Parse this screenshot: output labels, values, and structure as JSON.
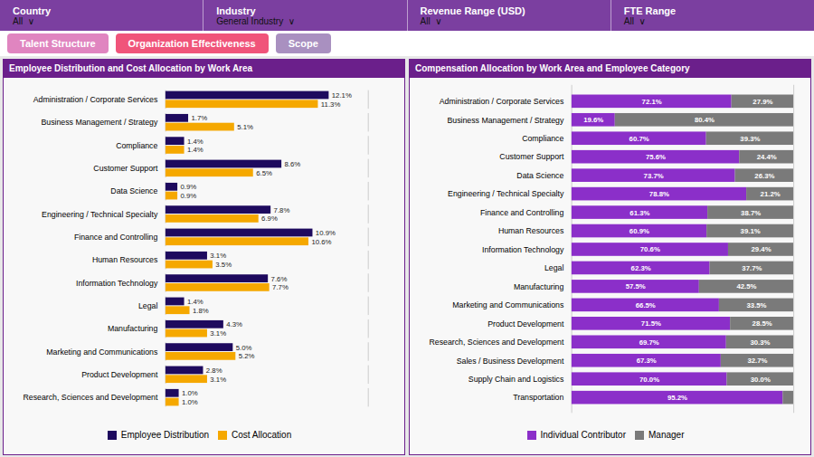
{
  "chart_data": [
    {
      "type": "bar",
      "orientation": "horizontal",
      "title": "Employee Distribution and Cost Allocation by Work Area",
      "annotations": [
        "Country",
        "All  ∨",
        "Industry",
        "General Industry  ∨",
        "Revenue Range (USD)",
        "All  ∨",
        "FTE Range",
        "All  ∨",
        "Talent Structure",
        "Organization Effectiveness",
        "Scope"
      ],
      "categories": [
        "Administration / Corporate Services",
        "Business Management / Strategy",
        "Compliance",
        "Customer Support",
        "Data Science",
        "Engineering / Technical Specialty",
        "Finance and Controlling",
        "Human Resources",
        "Information Technology",
        "Legal",
        "Manufacturing",
        "Marketing and Communications",
        "Product Development",
        "Research, Sciences and Development"
      ],
      "series": [
        {
          "name": "Employee Distribution",
          "color": "#1E0A5E",
          "values": [
            12.1,
            1.7,
            1.4,
            8.6,
            0.9,
            7.8,
            10.9,
            3.1,
            7.6,
            1.4,
            4.3,
            5.0,
            2.8,
            1.0
          ],
          "value_labels": [
            "12.1%",
            "1.7%",
            "1.4%",
            "8.6%",
            "0.9%",
            "7.8%",
            "10.9%",
            "3.1%",
            "7.6%",
            "1.4%",
            "4.3%",
            "5.0%",
            "2.8%",
            "1.0%"
          ]
        },
        {
          "name": "Cost Allocation",
          "color": "#F5A800",
          "values": [
            11.3,
            5.1,
            1.4,
            6.5,
            0.9,
            6.9,
            10.6,
            3.5,
            7.7,
            1.8,
            3.1,
            5.2,
            3.1,
            1.0
          ],
          "value_labels": [
            "11.3%",
            "5.1%",
            "1.4%",
            "6.5%",
            "0.9%",
            "6.9%",
            "10.6%",
            "3.5%",
            "7.7%",
            "1.8%",
            "3.1%",
            "5.2%",
            "3.1%",
            "1.0%"
          ]
        }
      ],
      "xlim": [
        0,
        15
      ],
      "tick_labels": "y",
      "data_labels": true,
      "legend": "bottom"
    },
    {
      "type": "bar",
      "orientation": "horizontal",
      "stacked": true,
      "title": "Compensation Allocation by Work Area and Employee Category",
      "categories": [
        "Administration / Corporate Services",
        "Business Management / Strategy",
        "Compliance",
        "Customer Support",
        "Data Science",
        "Engineering / Technical Specialty",
        "Finance and Controlling",
        "Human Resources",
        "Information Technology",
        "Legal",
        "Manufacturing",
        "Marketing and Communications",
        "Product Development",
        "Research, Sciences and Development",
        "Sales / Business Development",
        "Supply Chain and Logistics",
        "Transportation"
      ],
      "series": [
        {
          "name": "Individual Contributor",
          "color": "#8B2FC9",
          "values": [
            72.1,
            19.6,
            60.7,
            75.6,
            73.7,
            78.8,
            61.3,
            60.9,
            70.6,
            62.3,
            57.5,
            66.5,
            71.5,
            69.7,
            67.3,
            70.0,
            95.2
          ],
          "value_labels": [
            "72.1%",
            "19.6%",
            "60.7%",
            "75.6%",
            "73.7%",
            "78.8%",
            "61.3%",
            "60.9%",
            "70.6%",
            "62.3%",
            "57.5%",
            "66.5%",
            "71.5%",
            "69.7%",
            "67.3%",
            "70.0%",
            "95.2%"
          ]
        },
        {
          "name": "Manager",
          "color": "#7A7A7A",
          "values": [
            27.9,
            80.4,
            39.3,
            24.4,
            26.3,
            21.2,
            38.7,
            39.1,
            29.4,
            37.7,
            42.5,
            33.5,
            28.5,
            30.3,
            32.7,
            30.0,
            4.8
          ],
          "value_labels": [
            "27.9%",
            "80.4%",
            "39.3%",
            "24.4%",
            "26.3%",
            "21.2%",
            "38.7%",
            "39.1%",
            "29.4%",
            "37.7%",
            "42.5%",
            "33.5%",
            "28.5%",
            "30.3%",
            "32.7%",
            "30.0%",
            null
          ]
        }
      ],
      "xlim": [
        0,
        100
      ],
      "tick_labels": "y",
      "data_labels": true,
      "legend": "bottom"
    }
  ]
}
